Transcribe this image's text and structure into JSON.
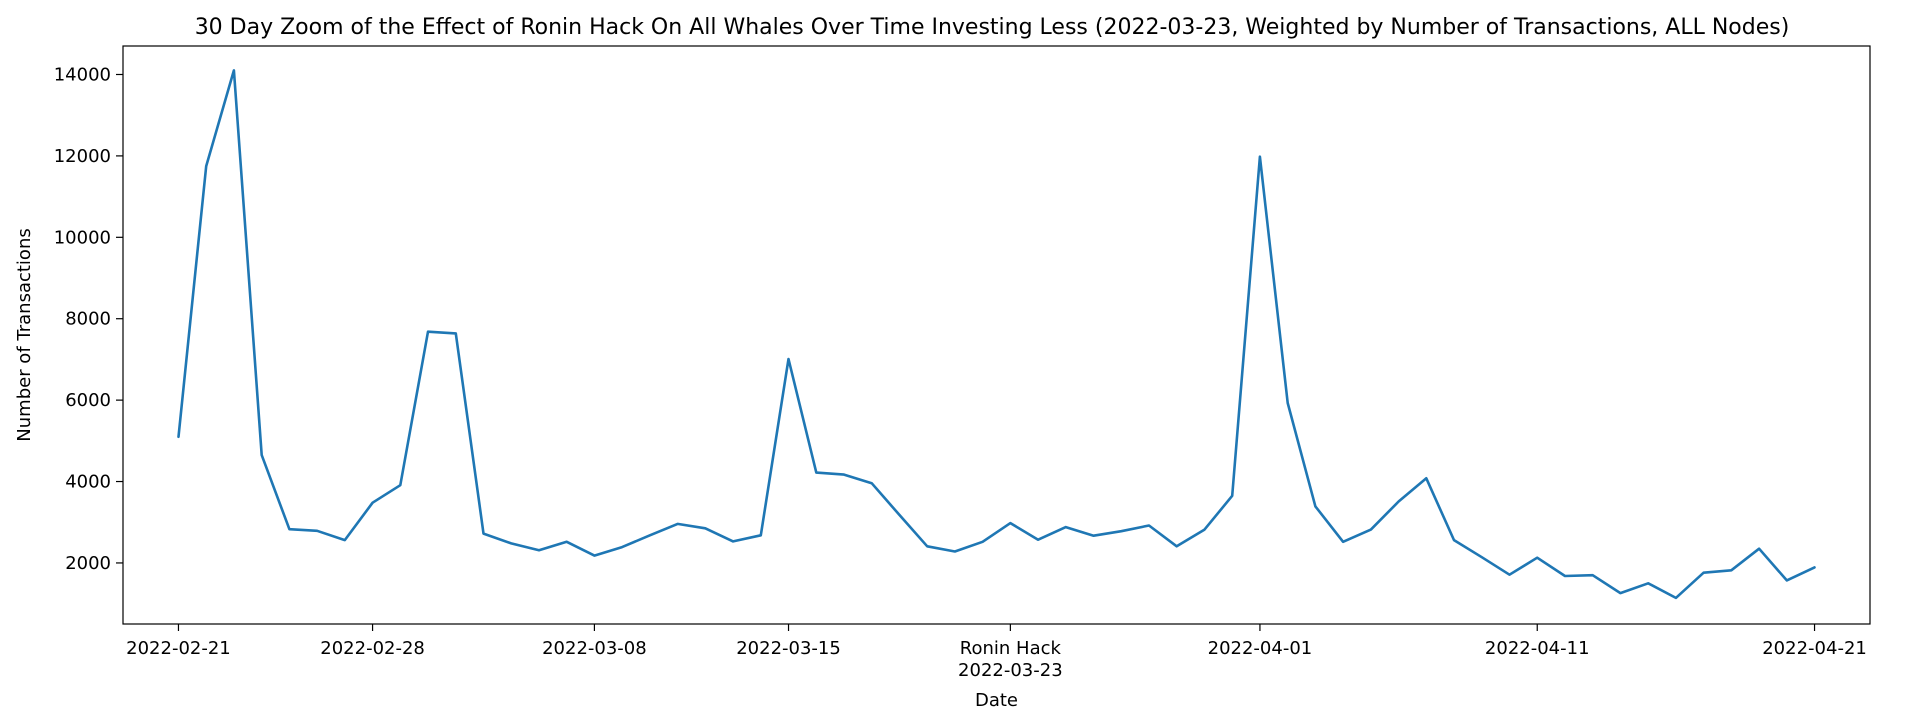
{
  "chart_data": {
    "type": "line",
    "title": "30 Day Zoom of the Effect of Ronin Hack On All Whales Over Time Investing Less (2022-03-23, Weighted by Number of Transactions, ALL Nodes)",
    "xlabel": "Date",
    "ylabel": "Number of Transactions",
    "xlim": [
      "2022-02-19",
      "2022-04-23"
    ],
    "ylim": [
      500,
      14700
    ],
    "grid": false,
    "legend": "none",
    "line_color": "#1f77b4",
    "x_ticks": [
      {
        "date": "2022-02-21",
        "label": "2022-02-21"
      },
      {
        "date": "2022-02-28",
        "label": "2022-02-28"
      },
      {
        "date": "2022-03-08",
        "label": "2022-03-08"
      },
      {
        "date": "2022-03-15",
        "label": "2022-03-15"
      },
      {
        "date": "2022-03-23",
        "label": "Ronin Hack\n2022-03-23"
      },
      {
        "date": "2022-04-01",
        "label": "2022-04-01"
      },
      {
        "date": "2022-04-11",
        "label": "2022-04-11"
      },
      {
        "date": "2022-04-21",
        "label": "2022-04-21"
      }
    ],
    "y_ticks": [
      2000,
      4000,
      6000,
      8000,
      10000,
      12000,
      14000
    ],
    "series": [
      {
        "x": [
          "2022-02-21",
          "2022-02-22",
          "2022-02-23",
          "2022-02-24",
          "2022-02-25",
          "2022-02-26",
          "2022-02-27",
          "2022-02-28",
          "2022-03-01",
          "2022-03-02",
          "2022-03-03",
          "2022-03-04",
          "2022-03-05",
          "2022-03-06",
          "2022-03-07",
          "2022-03-08",
          "2022-03-09",
          "2022-03-10",
          "2022-03-11",
          "2022-03-12",
          "2022-03-13",
          "2022-03-14",
          "2022-03-15",
          "2022-03-16",
          "2022-03-17",
          "2022-03-18",
          "2022-03-19",
          "2022-03-20",
          "2022-03-21",
          "2022-03-22",
          "2022-03-23",
          "2022-03-24",
          "2022-03-25",
          "2022-03-26",
          "2022-03-27",
          "2022-03-28",
          "2022-03-29",
          "2022-03-30",
          "2022-03-31",
          "2022-04-01",
          "2022-04-02",
          "2022-04-03",
          "2022-04-04",
          "2022-04-05",
          "2022-04-06",
          "2022-04-07",
          "2022-04-08",
          "2022-04-09",
          "2022-04-10",
          "2022-04-11",
          "2022-04-12",
          "2022-04-13",
          "2022-04-14",
          "2022-04-15",
          "2022-04-16",
          "2022-04-17",
          "2022-04-18",
          "2022-04-19",
          "2022-04-20",
          "2022-04-21"
        ],
        "y": [
          5100,
          11750,
          14100,
          4650,
          2830,
          2790,
          2560,
          3480,
          3910,
          7680,
          7640,
          2720,
          2480,
          2310,
          2520,
          2180,
          2390,
          2680,
          2960,
          2850,
          2530,
          2680,
          7010,
          4220,
          4170,
          3960,
          3180,
          2410,
          2280,
          2520,
          2980,
          2570,
          2880,
          2670,
          2780,
          2920,
          2410,
          2820,
          3650,
          11980,
          5930,
          3390,
          2520,
          2820,
          3510,
          4080,
          2560,
          2140,
          1710,
          2130,
          1680,
          1700,
          1260,
          1500,
          1140,
          1760,
          1820,
          2350,
          1570,
          1890
        ]
      }
    ]
  }
}
